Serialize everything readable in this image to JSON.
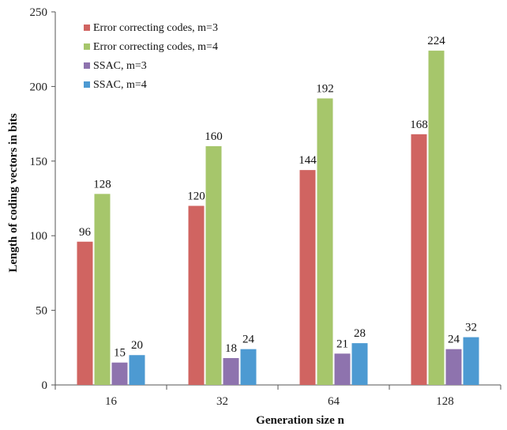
{
  "chart_data": {
    "type": "bar",
    "title": "",
    "xlabel": "Generation size n",
    "ylabel": "Length of coding vectors in bits",
    "categories": [
      "16",
      "32",
      "64",
      "128"
    ],
    "ylim": [
      0,
      250
    ],
    "yticks": [
      0,
      50,
      100,
      150,
      200,
      250
    ],
    "grid": false,
    "legend_position": "top-left",
    "series": [
      {
        "name": "Error correcting codes, m=3",
        "values": [
          96,
          120,
          144,
          168
        ],
        "color": "#d06461"
      },
      {
        "name": "Error correcting codes, m=4",
        "values": [
          128,
          160,
          192,
          224
        ],
        "color": "#a6c66b"
      },
      {
        "name": "SSAC, m=3",
        "values": [
          15,
          18,
          21,
          24
        ],
        "color": "#8e73ae"
      },
      {
        "name": "SSAC, m=4",
        "values": [
          20,
          24,
          28,
          32
        ],
        "color": "#4d9ad2"
      }
    ]
  }
}
